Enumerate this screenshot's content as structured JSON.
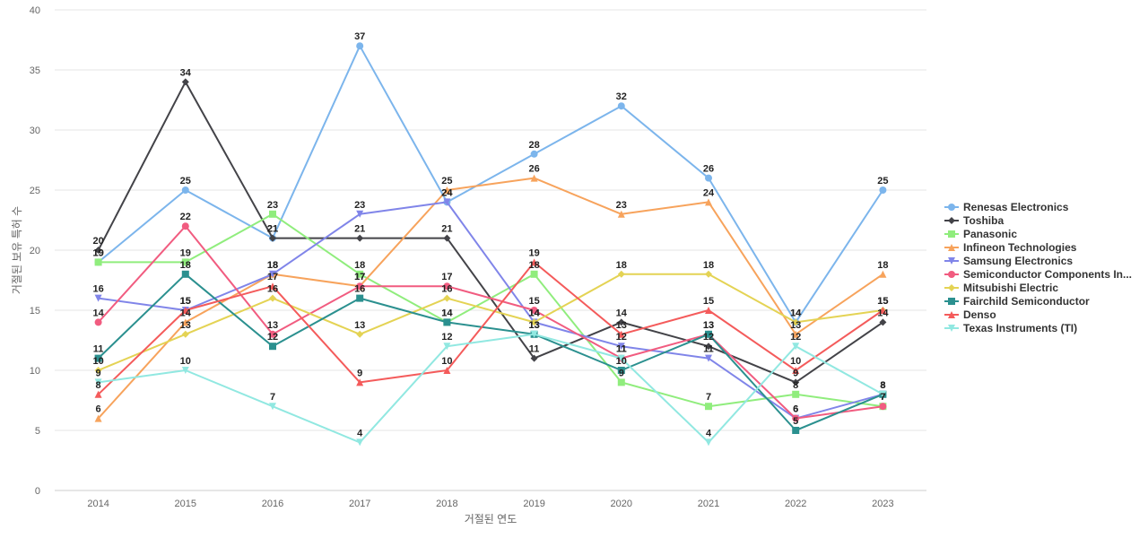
{
  "chart_data": {
    "type": "line",
    "x": [
      2014,
      2015,
      2016,
      2017,
      2018,
      2019,
      2020,
      2021,
      2022,
      2023
    ],
    "xlabel": "거절된 연도",
    "ylabel": "거절된 보유 특허 수",
    "ylim": [
      0,
      40
    ],
    "yticks": [
      0,
      5,
      10,
      15,
      20,
      25,
      30,
      35,
      40
    ],
    "grid": true,
    "legend_position": "right",
    "series": [
      {
        "name": "Renesas Electronics",
        "color": "#7cb5ec",
        "marker": "circle",
        "values": [
          19,
          25,
          21,
          37,
          24,
          28,
          32,
          26,
          14,
          25
        ]
      },
      {
        "name": "Toshiba",
        "color": "#434348",
        "marker": "diamond",
        "values": [
          20,
          34,
          21,
          21,
          21,
          11,
          14,
          12,
          9,
          14
        ]
      },
      {
        "name": "Panasonic",
        "color": "#90ed7d",
        "marker": "square",
        "values": [
          19,
          19,
          23,
          18,
          14,
          18,
          9,
          7,
          8,
          7
        ]
      },
      {
        "name": "Infineon Technologies",
        "color": "#f7a35c",
        "marker": "triangle",
        "values": [
          6,
          14,
          18,
          17,
          25,
          26,
          23,
          24,
          13,
          18
        ]
      },
      {
        "name": "Samsung Electronics",
        "color": "#8085e9",
        "marker": "triangle-down",
        "values": [
          16,
          15,
          18,
          23,
          24,
          14,
          12,
          11,
          6,
          8
        ]
      },
      {
        "name": "Semiconductor Components In...",
        "color": "#f15c80",
        "marker": "circle",
        "values": [
          14,
          22,
          13,
          17,
          17,
          15,
          11,
          13,
          6,
          7
        ]
      },
      {
        "name": "Mitsubishi Electric",
        "color": "#e4d354",
        "marker": "diamond",
        "values": [
          10,
          13,
          16,
          13,
          16,
          14,
          18,
          18,
          14,
          15
        ]
      },
      {
        "name": "Fairchild Semiconductor",
        "color": "#2b908f",
        "marker": "square",
        "values": [
          11,
          18,
          12,
          16,
          14,
          13,
          10,
          13,
          5,
          8
        ]
      },
      {
        "name": "Denso",
        "color": "#f45b5b",
        "marker": "triangle",
        "values": [
          8,
          15,
          17,
          9,
          10,
          19,
          13,
          15,
          10,
          15
        ]
      },
      {
        "name": "Texas Instruments (TI)",
        "color": "#91e8e1",
        "marker": "triangle-down",
        "values": [
          9,
          10,
          7,
          4,
          12,
          13,
          11,
          4,
          12,
          8
        ]
      }
    ]
  }
}
